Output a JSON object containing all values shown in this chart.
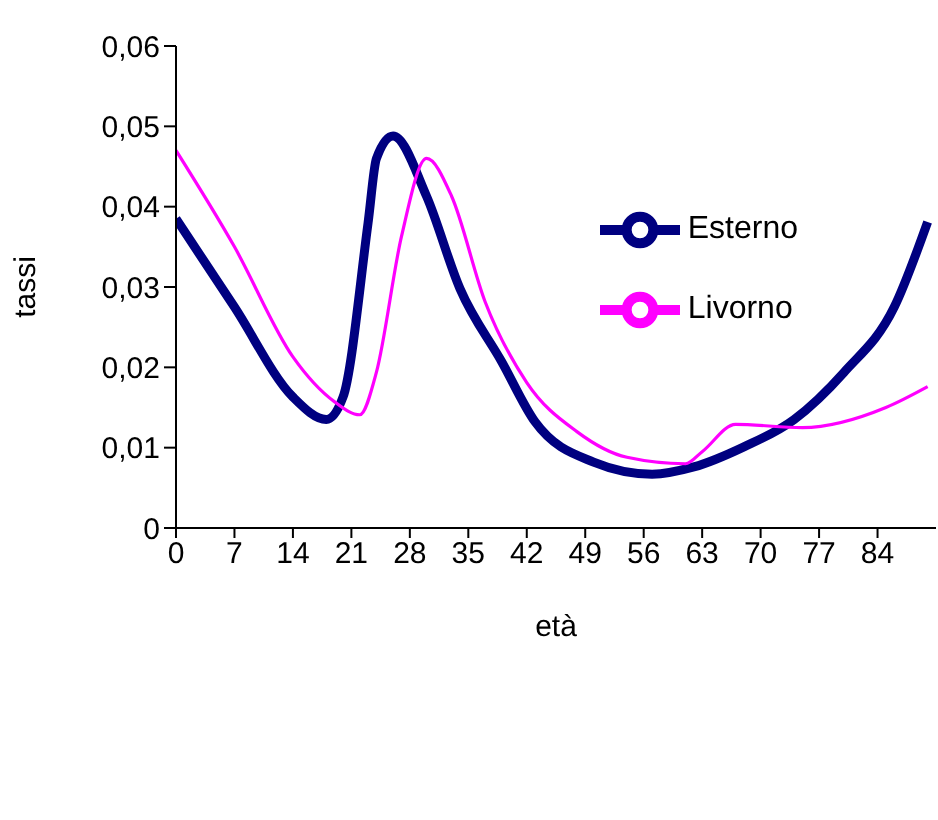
{
  "chart_data": {
    "type": "line",
    "xlabel": "età",
    "ylabel": "tassi",
    "xlim": [
      0,
      91
    ],
    "xticks": [
      0,
      7,
      14,
      21,
      28,
      35,
      42,
      49,
      56,
      63,
      70,
      77,
      84
    ],
    "ylim": [
      0,
      0.06
    ],
    "yticks": [
      0,
      {
        "value": 0.01,
        "label": "0,01"
      },
      {
        "value": 0.02,
        "label": "0,02"
      },
      {
        "value": 0.03,
        "label": "0,03"
      },
      {
        "value": 0.04,
        "label": "0,04"
      },
      {
        "value": 0.05,
        "label": "0,05"
      },
      {
        "value": 0.06,
        "label": "0,06"
      }
    ],
    "grid": false,
    "legend": "top right",
    "marker": "none",
    "series": [
      {
        "name": "Esterno",
        "color": "#000080",
        "x": [
          0,
          7,
          14,
          18,
          20,
          23,
          24,
          26,
          30,
          34,
          39,
          43,
          50,
          57,
          62,
          68,
          74,
          80,
          86,
          90
        ],
        "values": [
          0.0385,
          0.0275,
          0.0163,
          0.0135,
          0.0163,
          0.038,
          0.046,
          0.0488,
          0.0413,
          0.0298,
          0.0207,
          0.0132,
          0.0082,
          0.0067,
          0.0076,
          0.0101,
          0.0135,
          0.0194,
          0.0275,
          0.0381
        ]
      },
      {
        "name": "Livorno",
        "color": "#ff00ff",
        "x": [
          0,
          7,
          14,
          19,
          22,
          24,
          27,
          30,
          33,
          37,
          42,
          48,
          54,
          61,
          63,
          67,
          75,
          85,
          90
        ],
        "values": [
          0.047,
          0.035,
          0.0213,
          0.0157,
          0.0141,
          0.0194,
          0.0363,
          0.046,
          0.0413,
          0.0282,
          0.0181,
          0.012,
          0.0088,
          0.008,
          0.0095,
          0.0129,
          0.0125,
          0.015,
          0.0176
        ]
      }
    ]
  }
}
